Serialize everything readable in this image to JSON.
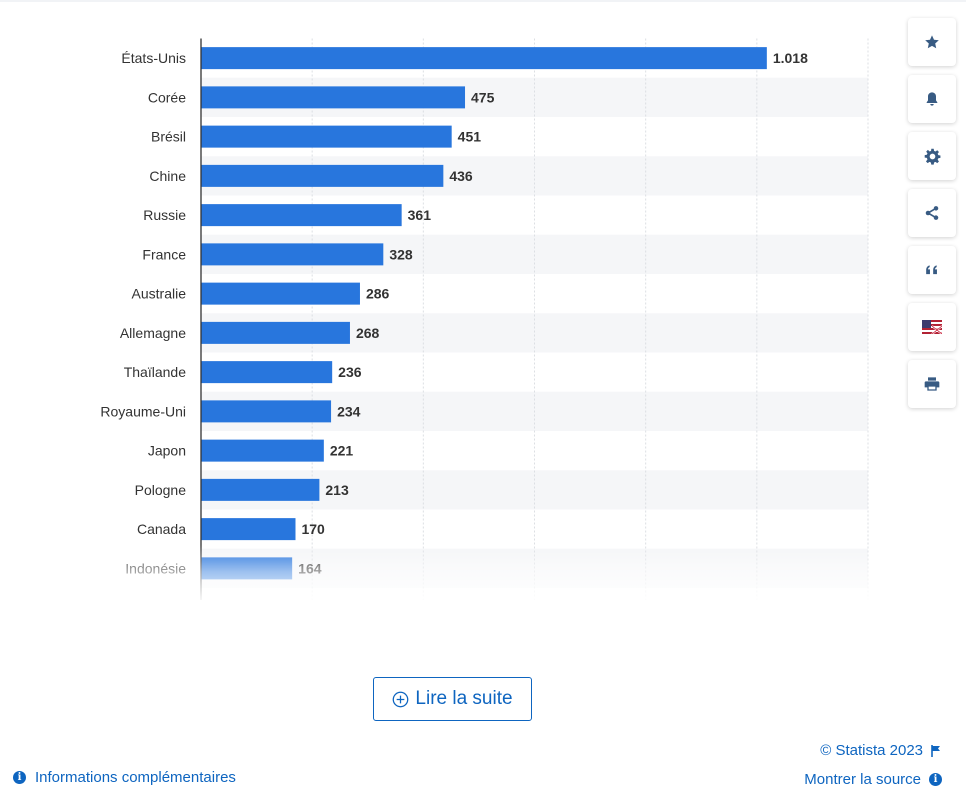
{
  "chart_data": {
    "type": "bar",
    "orientation": "horizontal",
    "categories": [
      "États-Unis",
      "Corée",
      "Brésil",
      "Chine",
      "Russie",
      "France",
      "Australie",
      "Allemagne",
      "Thaïlande",
      "Royaume-Uni",
      "Japon",
      "Pologne",
      "Canada",
      "Indonésie"
    ],
    "values": [
      1018,
      475,
      451,
      436,
      361,
      328,
      286,
      268,
      236,
      234,
      221,
      213,
      170,
      164
    ],
    "value_labels": [
      "1.018",
      "475",
      "451",
      "436",
      "361",
      "328",
      "286",
      "268",
      "236",
      "234",
      "221",
      "213",
      "170",
      "164"
    ],
    "xlim": [
      0,
      1200
    ],
    "grid": true,
    "bar_color": "#2876dd",
    "alt_row_color": "#f5f6f8"
  },
  "toolbar": {
    "buttons": [
      {
        "name": "favorite-button",
        "icon": "star-icon"
      },
      {
        "name": "notification-button",
        "icon": "bell-icon"
      },
      {
        "name": "settings-button",
        "icon": "gear-icon"
      },
      {
        "name": "share-button",
        "icon": "share-icon"
      },
      {
        "name": "cite-button",
        "icon": "quote-icon"
      },
      {
        "name": "language-button",
        "icon": "flag-icon"
      },
      {
        "name": "print-button",
        "icon": "print-icon"
      }
    ]
  },
  "read_more": {
    "label": "Lire la suite",
    "icon": "plus-circle-icon"
  },
  "footer": {
    "info_label": "Informations complémentaires",
    "copyright": "© Statista 2023",
    "source_label": "Montrer la source"
  },
  "colors": {
    "accent": "#0e65c0",
    "icon": "#385b83"
  }
}
